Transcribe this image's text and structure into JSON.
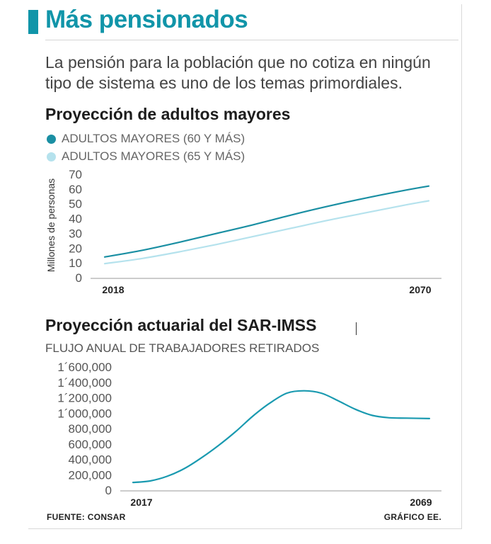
{
  "title": "Más pensionados",
  "intro": "La pensión para la población que no cotiza en ningún tipo de sistema es uno de los temas primordiales.",
  "colors": {
    "accent": "#1195a9",
    "series1": "#1a8fa3",
    "series2": "#b5e2ed",
    "axis": "#9a9a9a"
  },
  "chart1": {
    "heading": "Proyección de adultos mayores"
  },
  "chart2": {
    "heading": "Proyección actuarial del SAR-IMSS",
    "subtitle": "FLUJO ANUAL DE TRABAJADORES RETIRADOS"
  },
  "footer": {
    "source": "FUENTE: CONSAR",
    "credit": "GRÁFICO EE."
  },
  "chart_data": [
    {
      "type": "line",
      "title": "Proyección de adultos mayores",
      "ylabel": "Millones de personas",
      "xlabel": "",
      "xlim": [
        2018,
        2070
      ],
      "ylim": [
        0,
        70
      ],
      "yticks": [
        "0",
        "10",
        "20",
        "30",
        "40",
        "50",
        "60",
        "70"
      ],
      "xtick_labels": [
        "2018",
        "2070"
      ],
      "legend": "top-left",
      "series": [
        {
          "name": "ADULTOS MAYORES (60 Y MÁS)",
          "color": "#1a8fa3",
          "x": [
            2018,
            2024,
            2030,
            2036,
            2042,
            2048,
            2054,
            2060,
            2066,
            2070
          ],
          "values": [
            14,
            18.5,
            24,
            30,
            36,
            42.5,
            48.5,
            54,
            59,
            62
          ]
        },
        {
          "name": "ADULTOS MAYORES (65 Y MÁS)",
          "color": "#b5e2ed",
          "x": [
            2018,
            2024,
            2030,
            2036,
            2042,
            2048,
            2054,
            2060,
            2066,
            2070
          ],
          "values": [
            9.5,
            13,
            17.5,
            22.5,
            28,
            33.5,
            39,
            44,
            49,
            52
          ]
        }
      ]
    },
    {
      "type": "line",
      "title": "Proyección actuarial del SAR-IMSS",
      "subtitle": "FLUJO ANUAL DE TRABAJADORES RETIRADOS",
      "xlim": [
        2017,
        2069
      ],
      "ylim": [
        0,
        1600000
      ],
      "yticks": [
        "0",
        "200,000",
        "400,000",
        "600,000",
        "800,000",
        "1´000,000",
        "1´200,000",
        "1´400,000",
        "1´600,000"
      ],
      "xtick_labels": [
        "2017",
        "2069"
      ],
      "series": [
        {
          "name": "Flujo anual de trabajadores retirados",
          "color": "#1a9ab0",
          "x": [
            2017,
            2020,
            2023,
            2026,
            2029,
            2032,
            2035,
            2038,
            2041,
            2044,
            2047,
            2050,
            2053,
            2056,
            2059,
            2062,
            2065,
            2069
          ],
          "values": [
            100000,
            120000,
            180000,
            280000,
            420000,
            580000,
            760000,
            960000,
            1130000,
            1260000,
            1290000,
            1260000,
            1160000,
            1050000,
            970000,
            940000,
            935000,
            930000
          ]
        }
      ]
    }
  ]
}
